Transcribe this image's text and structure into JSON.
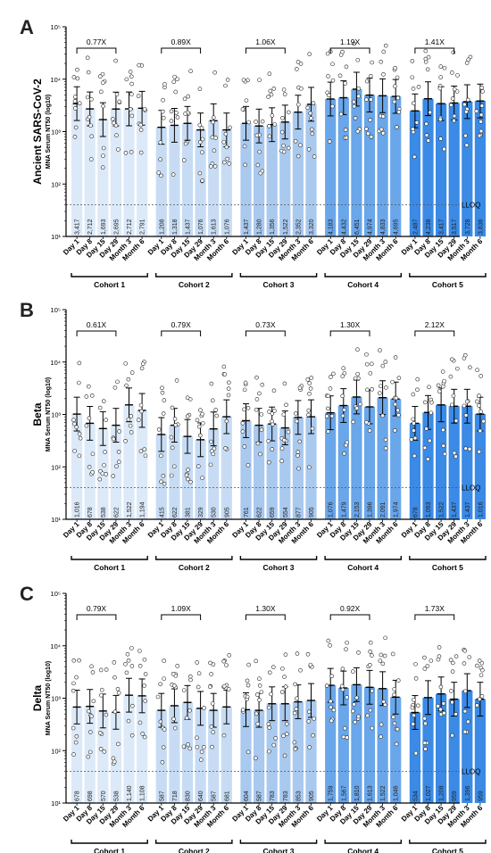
{
  "figure": {
    "cohort_labels": [
      "Cohort 1",
      "Cohort 2",
      "Cohort 3",
      "Cohort 4",
      "Cohort 5"
    ],
    "timepoint_labels": [
      "Day 1",
      "Day 8",
      "Day 15",
      "Day 29",
      "Month 3",
      "Month 6"
    ],
    "lloq_label": "LLOQ",
    "colors": {
      "cohort1": "#dce9f8",
      "cohort2": "#c7dcf4",
      "cohort3": "#a9c9ef",
      "cohort4": "#6aa6ea",
      "cohort5": "#3a8ae6",
      "points": "#ffffff",
      "axis": "#000000"
    }
  },
  "chart_data": [
    {
      "panel_letter": "A",
      "type": "bar",
      "scale": "log10",
      "ylabel": "Ancient SARS-CoV-2",
      "ylabel_sub": "MNA Serum NT50 (log10)",
      "ylim": [
        10,
        100000
      ],
      "y_ticks": [
        "10¹",
        "10²",
        "10³",
        "10⁴",
        "10⁵"
      ],
      "lloq": 40,
      "fold_changes": [
        "0.77X",
        "0.89X",
        "1.06X",
        "1.19X",
        "1.41X"
      ],
      "series": [
        {
          "cohort": "Cohort 1",
          "values": [
            3417,
            2712,
            1693,
            2695,
            2712,
            2791
          ],
          "value_labels": [
            "3,417",
            "2,712",
            "1,693",
            "2,695",
            "2,712",
            "2,791"
          ]
        },
        {
          "cohort": "Cohort 2",
          "values": [
            1208,
            1318,
            1437,
            1076,
            1613,
            1076
          ],
          "value_labels": [
            "1,208",
            "1,318",
            "1,437",
            "1,076",
            "1,613",
            "1,076"
          ]
        },
        {
          "cohort": "Cohort 3",
          "values": [
            1437,
            1280,
            1356,
            1522,
            2352,
            3320
          ],
          "value_labels": [
            "1,437",
            "1,280",
            "1,356",
            "1,522",
            "2,352",
            "3,320"
          ]
        },
        {
          "cohort": "Cohort 4",
          "values": [
            4183,
            4432,
            6451,
            4974,
            4833,
            4695
          ],
          "value_labels": [
            "4,183",
            "4,432",
            "6,451",
            "4,974",
            "4,833",
            "4,695"
          ]
        },
        {
          "cohort": "Cohort 5",
          "values": [
            2487,
            4238,
            3417,
            3517,
            3728,
            3836
          ],
          "value_labels": [
            "2,487",
            "4,238",
            "3,417",
            "3,517",
            "3,728",
            "3,836"
          ]
        }
      ]
    },
    {
      "panel_letter": "B",
      "type": "bar",
      "scale": "log10",
      "ylabel": "Beta",
      "ylabel_sub": "MNA Serum NT50 (log10)",
      "ylim": [
        10,
        100000
      ],
      "y_ticks": [
        "10¹",
        "10²",
        "10³",
        "10⁴",
        "10⁵"
      ],
      "lloq": 40,
      "fold_changes": [
        "0.61X",
        "0.79X",
        "0.73X",
        "1.30X",
        "2.12X"
      ],
      "series": [
        {
          "cohort": "Cohort 1",
          "values": [
            1016,
            678,
            538,
            622,
            1522,
            1194
          ],
          "value_labels": [
            "1,016",
            "678",
            "538",
            "622",
            "1,522",
            "1,194"
          ]
        },
        {
          "cohort": "Cohort 2",
          "values": [
            415,
            622,
            381,
            329,
            530,
            905
          ],
          "value_labels": [
            "415",
            "622",
            "381",
            "329",
            "530",
            "905"
          ]
        },
        {
          "cohort": "Cohort 3",
          "values": [
            761,
            622,
            659,
            554,
            877,
            905
          ],
          "value_labels": [
            "761",
            "622",
            "659",
            "554",
            "877",
            "905"
          ]
        },
        {
          "cohort": "Cohort 4",
          "values": [
            1076,
            1479,
            2153,
            1396,
            2091,
            1974
          ],
          "value_labels": [
            "1,076",
            "1,479",
            "2,153",
            "1,396",
            "2,091",
            "1,974"
          ]
        },
        {
          "cohort": "Cohort 5",
          "values": [
            678,
            1093,
            1522,
            1437,
            1437,
            1016
          ],
          "value_labels": [
            "678",
            "1,093",
            "1,522",
            "1,437",
            "1,437",
            "1,016"
          ]
        }
      ]
    },
    {
      "panel_letter": "C",
      "type": "bar",
      "scale": "log10",
      "ylabel": "Delta",
      "ylabel_sub": "MNA Serum NT50 (log10)",
      "ylim": [
        10,
        100000
      ],
      "y_ticks": [
        "10¹",
        "10²",
        "10³",
        "10⁴",
        "10⁵"
      ],
      "lloq": 40,
      "fold_changes": [
        "0.79X",
        "1.09X",
        "1.30X",
        "0.92X",
        "1.73X"
      ],
      "series": [
        {
          "cohort": "Cohort 1",
          "values": [
            678,
            698,
            570,
            538,
            1140,
            1108
          ],
          "value_labels": [
            "678",
            "698",
            "570",
            "538",
            "1,140",
            "1,108"
          ]
        },
        {
          "cohort": "Cohort 2",
          "values": [
            587,
            718,
            830,
            640,
            587,
            681
          ],
          "value_labels": [
            "587",
            "718",
            "830",
            "640",
            "587",
            "681"
          ]
        },
        {
          "cohort": "Cohort 3",
          "values": [
            604,
            587,
            783,
            783,
            853,
            905
          ],
          "value_labels": [
            "604",
            "587",
            "783",
            "783",
            "853",
            "905"
          ]
        },
        {
          "cohort": "Cohort 4",
          "values": [
            1759,
            1567,
            1810,
            1613,
            1522,
            1046
          ],
          "value_labels": [
            "1,759",
            "1,567",
            "1,810",
            "1,613",
            "1,522",
            "1,046"
          ]
        },
        {
          "cohort": "Cohort 5",
          "values": [
            534,
            1027,
            1208,
            959,
            1396,
            959
          ],
          "value_labels": [
            "534",
            "1,027",
            "1,208",
            "959",
            "1,396",
            "959"
          ]
        }
      ]
    }
  ]
}
